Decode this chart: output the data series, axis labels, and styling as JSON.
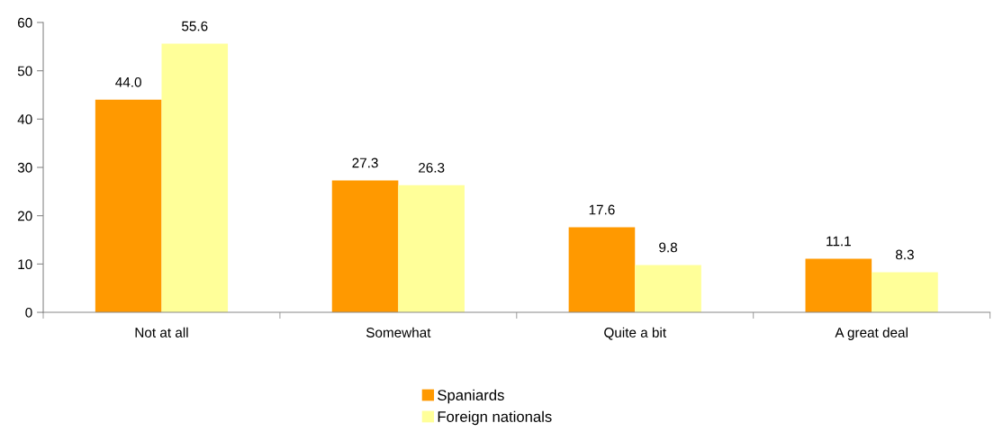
{
  "chart_data": {
    "type": "bar",
    "categories": [
      "Not at all",
      "Somewhat",
      "Quite a bit",
      "A great deal"
    ],
    "series": [
      {
        "name": "Spaniards",
        "color": "#ff9900",
        "values": [
          44.0,
          27.3,
          17.6,
          11.1
        ],
        "value_labels": [
          "44.0",
          "27.3",
          "17.6",
          "11.1"
        ]
      },
      {
        "name": "Foreign nationals",
        "color": "#ffff99",
        "values": [
          55.6,
          26.3,
          9.8,
          8.3
        ],
        "value_labels": [
          "55.6",
          "26.3",
          "9.8",
          "8.3"
        ]
      }
    ],
    "ylim": [
      0,
      60
    ],
    "yticks": [
      0,
      10,
      20,
      30,
      40,
      50,
      60
    ],
    "grid": false,
    "legend": "bottom"
  }
}
